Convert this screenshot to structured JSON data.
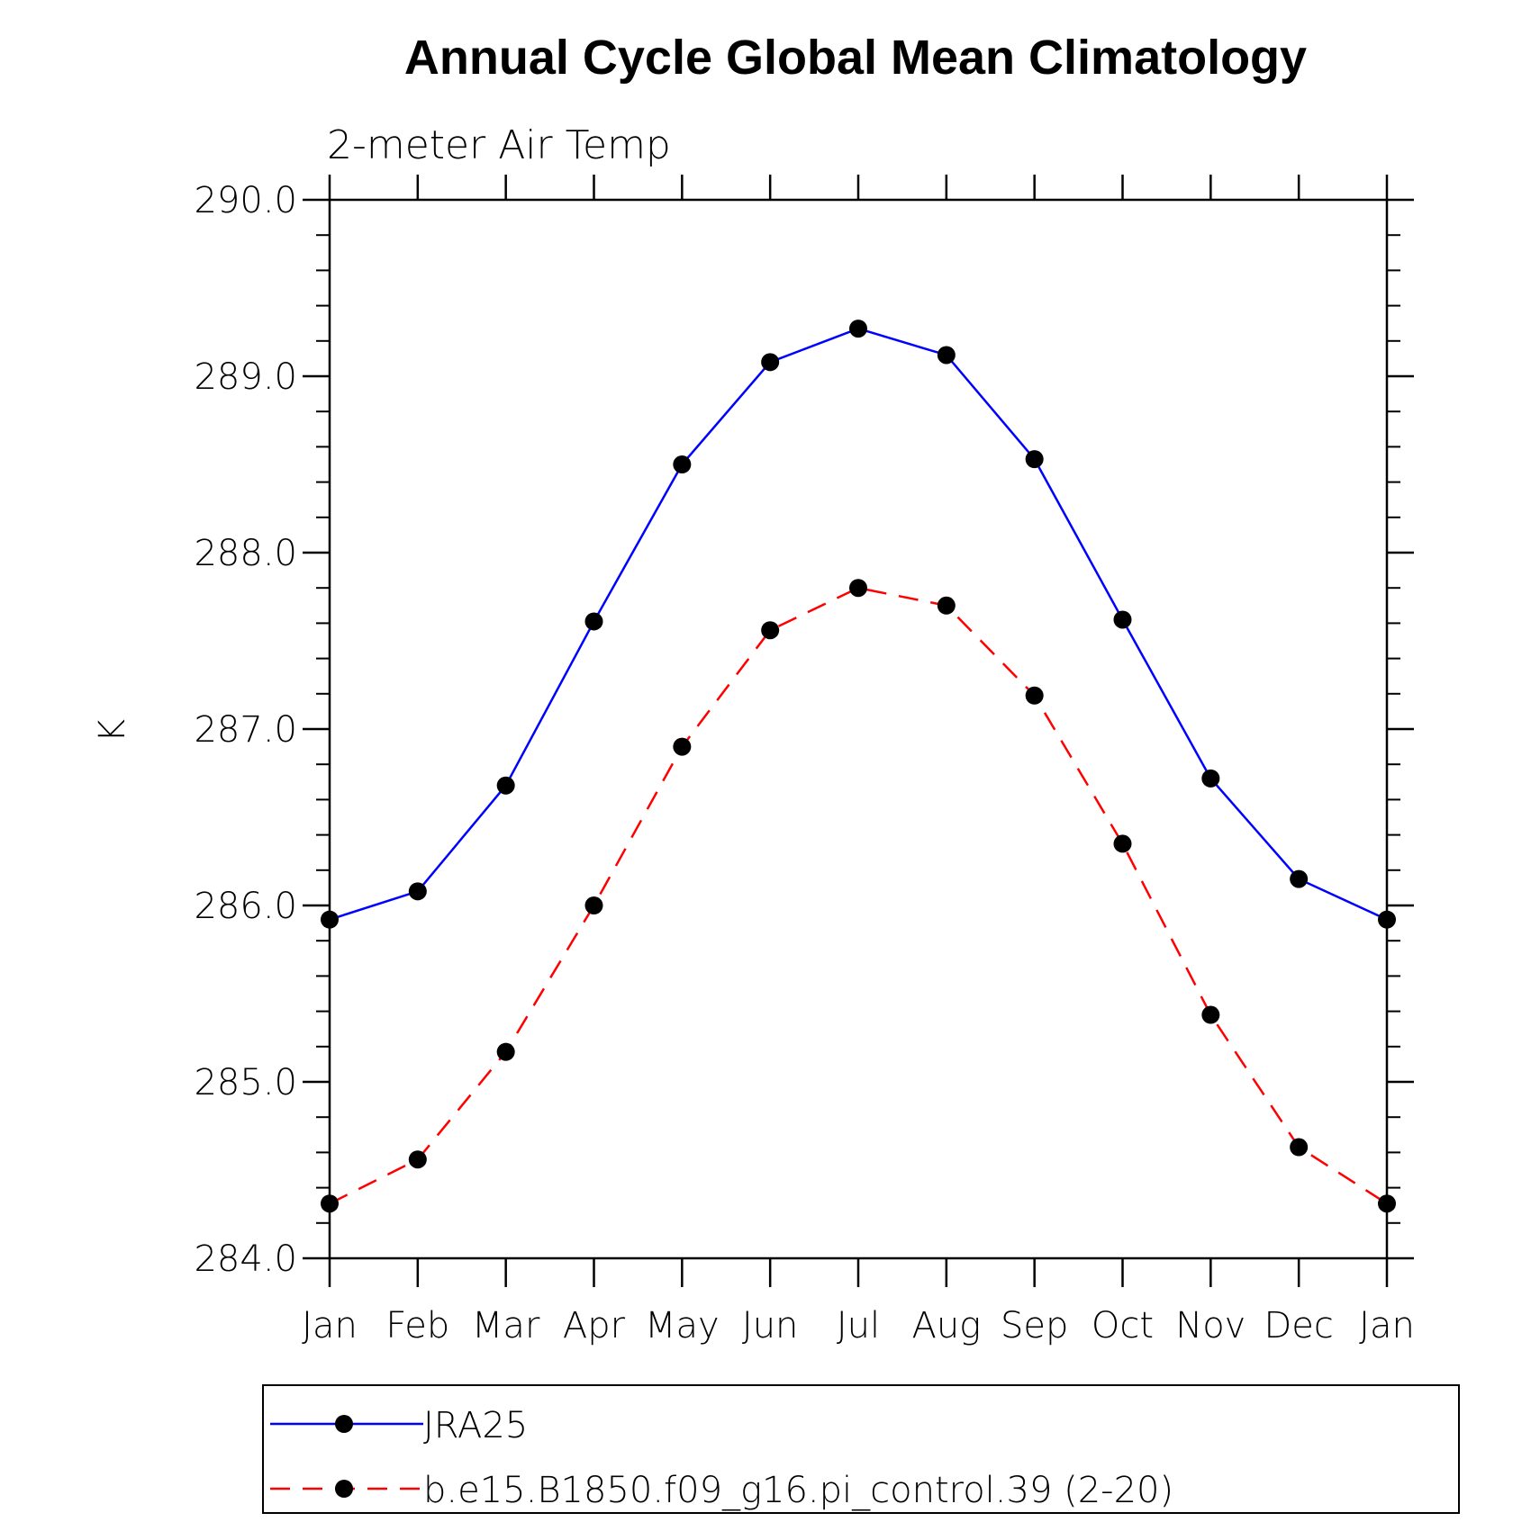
{
  "chart_data": {
    "type": "line",
    "title": "Annual Cycle Global Mean Climatology",
    "subtitle": "2-meter Air Temp",
    "xlabel": "",
    "ylabel": "K",
    "categories": [
      "Jan",
      "Feb",
      "Mar",
      "Apr",
      "May",
      "Jun",
      "Jul",
      "Aug",
      "Sep",
      "Oct",
      "Nov",
      "Dec",
      "Jan"
    ],
    "ylim": [
      284.0,
      290.0
    ],
    "yticks": [
      "284.0",
      "285.0",
      "286.0",
      "287.0",
      "288.0",
      "289.0",
      "290.0"
    ],
    "grid": false,
    "legend_position": "bottom",
    "series": [
      {
        "name": "JRA25",
        "color": "#0000ff",
        "line_style": "solid",
        "marker": "filled-circle",
        "values": [
          285.92,
          286.08,
          286.68,
          287.61,
          288.5,
          289.08,
          289.27,
          289.12,
          288.53,
          287.62,
          286.72,
          286.15,
          285.92
        ]
      },
      {
        "name": "b.e15.B1850.f09_g16.pi_control.39 (2-20)",
        "color": "#ff0000",
        "line_style": "dashed",
        "marker": "filled-circle",
        "values": [
          284.31,
          284.56,
          285.17,
          286.0,
          286.9,
          287.56,
          287.8,
          287.7,
          287.19,
          286.35,
          285.38,
          284.63,
          284.31
        ]
      }
    ]
  }
}
